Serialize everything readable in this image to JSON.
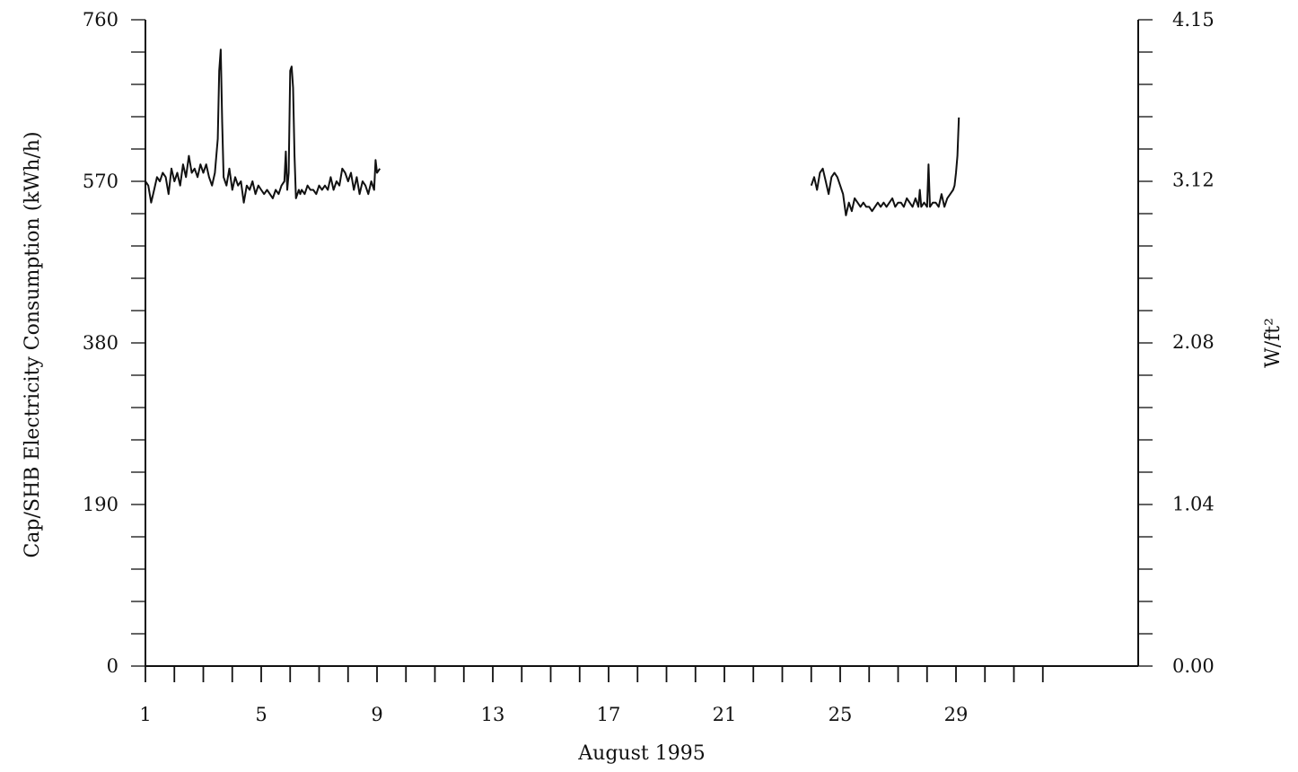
{
  "chart_data": {
    "type": "line",
    "title": "",
    "xlabel": "August 1995",
    "ylabel": "Cap/SHB Electricity Consumption (kWh/h)",
    "y2label": "W/ft²",
    "x_unit": "day of August 1995",
    "xlim": [
      1,
      32
    ],
    "ylim": [
      0,
      760
    ],
    "y2lim": [
      0,
      4.15
    ],
    "x_tick_labels": [
      "1",
      "5",
      "9",
      "13",
      "17",
      "21",
      "25",
      "29"
    ],
    "x_tick_values": [
      1,
      5,
      9,
      13,
      17,
      21,
      25,
      29
    ],
    "y_tick_labels": [
      "0",
      "190",
      "380",
      "570",
      "760"
    ],
    "y_tick_values": [
      0,
      190,
      380,
      570,
      760
    ],
    "y2_tick_labels": [
      "0.00",
      "1.04",
      "2.08",
      "3.12",
      "4.15"
    ],
    "y2_tick_values": [
      0,
      1.04,
      2.08,
      3.12,
      4.15
    ],
    "grid": false,
    "legend": "none",
    "series": [
      {
        "segments": [
          {
            "x": [
              1.0,
              1.1,
              1.2,
              1.3,
              1.4,
              1.5,
              1.6,
              1.7,
              1.8,
              1.9,
              2.0,
              2.1,
              2.2,
              2.3,
              2.4,
              2.5,
              2.6,
              2.7,
              2.8,
              2.9,
              3.0,
              3.1,
              3.2,
              3.3,
              3.4,
              3.5,
              3.55,
              3.6,
              3.65,
              3.7,
              3.75,
              3.8,
              3.9,
              4.0,
              4.1,
              4.2,
              4.3,
              4.4,
              4.5,
              4.6,
              4.7,
              4.8,
              4.9,
              5.0,
              5.1,
              5.2,
              5.3,
              5.4,
              5.5,
              5.6,
              5.7,
              5.8,
              5.85,
              5.9,
              5.95,
              6.0,
              6.05,
              6.1,
              6.15,
              6.2,
              6.3,
              6.35,
              6.4,
              6.5,
              6.6,
              6.7,
              6.8,
              6.9,
              7.0,
              7.1,
              7.2,
              7.3,
              7.4,
              7.5,
              7.6,
              7.7,
              7.8,
              7.9,
              8.0,
              8.1,
              8.2,
              8.3,
              8.4,
              8.5,
              8.6,
              8.7,
              8.8,
              8.9,
              8.95,
              9.0,
              9.1
            ],
            "y": [
              570,
              565,
              545,
              560,
              575,
              570,
              580,
              575,
              555,
              585,
              570,
              580,
              565,
              590,
              575,
              600,
              580,
              585,
              575,
              590,
              580,
              590,
              575,
              565,
              580,
              620,
              700,
              725,
              640,
              575,
              570,
              565,
              585,
              560,
              575,
              565,
              570,
              545,
              565,
              560,
              570,
              555,
              565,
              560,
              555,
              560,
              555,
              550,
              560,
              555,
              565,
              570,
              605,
              560,
              580,
              700,
              705,
              680,
              600,
              550,
              560,
              555,
              560,
              555,
              565,
              560,
              560,
              555,
              565,
              560,
              565,
              560,
              575,
              560,
              570,
              565,
              585,
              580,
              570,
              580,
              560,
              575,
              555,
              570,
              565,
              555,
              570,
              560,
              595,
              580,
              585
            ]
          },
          {
            "x": [
              24.0,
              24.1,
              24.2,
              24.3,
              24.4,
              24.5,
              24.6,
              24.7,
              24.8,
              24.9,
              25.0,
              25.05,
              25.1,
              25.2,
              25.3,
              25.4,
              25.5,
              25.6,
              25.7,
              25.8,
              25.9,
              26.0,
              26.1,
              26.2,
              26.3,
              26.4,
              26.5,
              26.6,
              26.7,
              26.8,
              26.9,
              27.0,
              27.1,
              27.2,
              27.3,
              27.4,
              27.5,
              27.6,
              27.7,
              27.75,
              27.8,
              27.9,
              28.0,
              28.05,
              28.1,
              28.2,
              28.3,
              28.4,
              28.5,
              28.6,
              28.7,
              28.8,
              28.9,
              28.95,
              29.0,
              29.05,
              29.1
            ],
            "y": [
              565,
              575,
              560,
              580,
              585,
              570,
              555,
              575,
              580,
              575,
              565,
              560,
              555,
              530,
              545,
              535,
              550,
              545,
              540,
              545,
              540,
              540,
              535,
              540,
              545,
              540,
              545,
              540,
              545,
              550,
              540,
              545,
              545,
              540,
              550,
              545,
              540,
              550,
              540,
              560,
              540,
              545,
              540,
              590,
              540,
              545,
              545,
              540,
              555,
              540,
              550,
              555,
              560,
              565,
              580,
              600,
              645
            ]
          }
        ]
      }
    ]
  }
}
